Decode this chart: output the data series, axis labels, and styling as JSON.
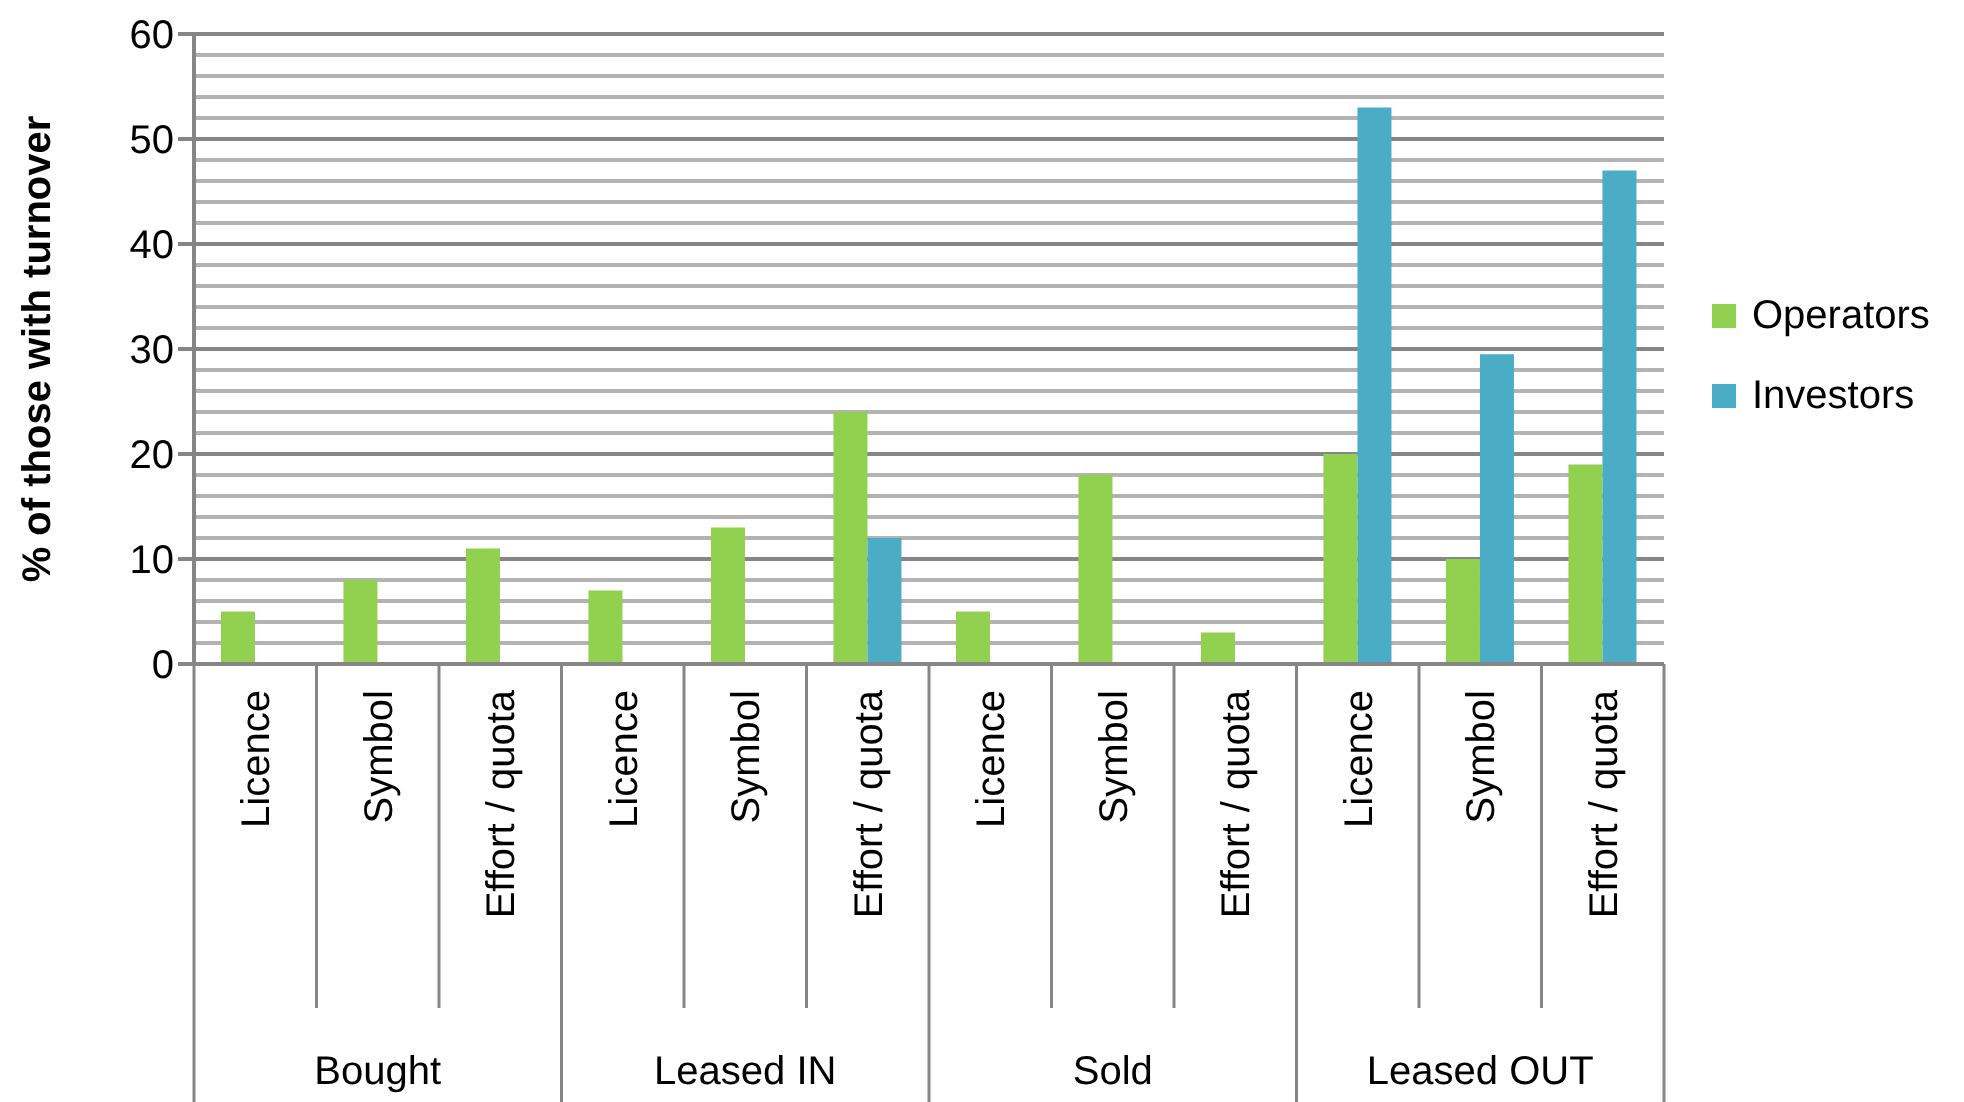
{
  "chart_data": {
    "type": "bar",
    "ylabel": "% of those with turnover",
    "categories": [
      "Licence",
      "Symbol",
      "Effort / quota",
      "Licence",
      "Symbol",
      "Effort / quota",
      "Licence",
      "Symbol",
      "Effort / quota",
      "Licence",
      "Symbol",
      "Effort / quota"
    ],
    "annotations": [
      "Bought",
      "Leased IN",
      "Sold",
      "Leased OUT"
    ],
    "series": [
      {
        "name": "Operators",
        "color": "#92d050",
        "values": [
          5,
          8,
          11,
          7,
          13,
          24,
          5,
          18,
          3,
          20,
          10,
          19
        ]
      },
      {
        "name": "Investors",
        "color": "#4bacc6",
        "values": [
          null,
          null,
          null,
          null,
          null,
          12,
          null,
          null,
          null,
          53,
          29.5,
          47
        ]
      }
    ],
    "ylim": [
      0,
      60
    ],
    "yticks": [
      0,
      10,
      20,
      30,
      40,
      50,
      60
    ],
    "grid": "y",
    "legend": "right"
  }
}
